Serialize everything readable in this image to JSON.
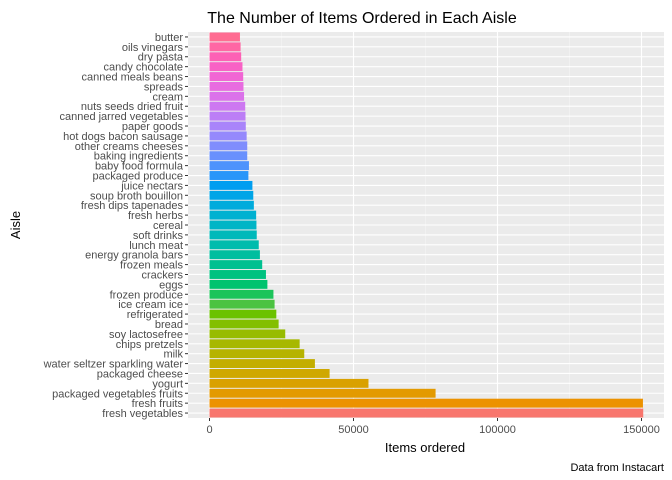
{
  "chart_data": {
    "type": "bar",
    "orientation": "horizontal",
    "title": "The Number of Items Ordered in Each Aisle",
    "xlabel": "Items ordered",
    "ylabel": "Aisle",
    "caption": "Data from Instacart",
    "xlim": [
      0,
      150000
    ],
    "x_ticks": [
      0,
      50000,
      100000,
      150000
    ],
    "x_tick_labels": [
      "0",
      "50000",
      "100000",
      "150000"
    ],
    "grid": true,
    "legend": "none",
    "categories": [
      "butter",
      "oils vinegars",
      "dry pasta",
      "candy chocolate",
      "canned meals beans",
      "spreads",
      "cream",
      "nuts seeds dried fruit",
      "canned jarred vegetables",
      "paper goods",
      "hot dogs bacon sausage",
      "other creams cheeses",
      "baking ingredients",
      "baby food formula",
      "packaged produce",
      "juice nectars",
      "soup broth bouillon",
      "fresh dips tapenades",
      "fresh herbs",
      "cereal",
      "soft drinks",
      "lunch meat",
      "energy granola bars",
      "frozen meals",
      "crackers",
      "eggs",
      "frozen produce",
      "ice cream ice",
      "refrigerated",
      "bread",
      "soy lactosefree",
      "chips pretzels",
      "milk",
      "water seltzer sparkling water",
      "packaged cheese",
      "yogurt",
      "packaged vegetables fruits",
      "fresh fruits",
      "fresh vegetables"
    ],
    "values": [
      10575,
      10800,
      11000,
      11450,
      11700,
      11800,
      12000,
      12400,
      12500,
      12600,
      12900,
      13100,
      13100,
      13700,
      13500,
      14900,
      15200,
      15400,
      16200,
      16300,
      16400,
      17100,
      17500,
      18300,
      19600,
      20100,
      22200,
      22600,
      23200,
      24000,
      26300,
      31300,
      32900,
      36600,
      41700,
      55200,
      78500,
      150500,
      150600
    ],
    "colors": [
      "#FF6C92",
      "#FF67A4",
      "#FD61B5",
      "#F862C5",
      "#F166D4",
      "#E86CE0",
      "#DB72EA",
      "#CD78F1",
      "#BC7EF6",
      "#A984FA",
      "#9589FC",
      "#808DFD",
      "#6990FD",
      "#4E93FC",
      "#2996F9",
      "#009EF0",
      "#00A5E7",
      "#00ABDC",
      "#00B1D1",
      "#00B5C6",
      "#00B9BA",
      "#00BCAD",
      "#00BE9F",
      "#00C090",
      "#00C280",
      "#00C36F",
      "#1BC45A",
      "#4CC341",
      "#6BC200",
      "#83BF00",
      "#97BC00",
      "#A7B800",
      "#B6B300",
      "#C3AE00",
      "#CFA800",
      "#D9A100",
      "#E39A00",
      "#EC9200",
      "#F8766D"
    ]
  }
}
